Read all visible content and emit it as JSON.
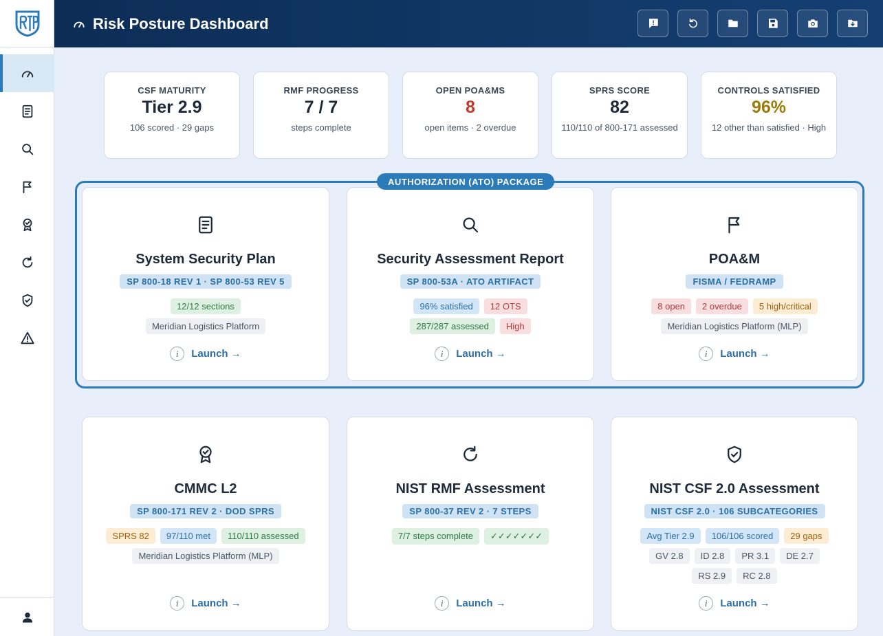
{
  "app": {
    "logo_text": "RTP"
  },
  "header": {
    "title": "Risk Posture Dashboard"
  },
  "stats": [
    {
      "label": "CSF MATURITY",
      "value": "Tier 2.9",
      "sub": "106 scored · 29 gaps"
    },
    {
      "label": "RMF PROGRESS",
      "value": "7 / 7",
      "sub": "steps complete"
    },
    {
      "label": "OPEN POA&MS",
      "value": "8",
      "sub": "open items · 2 overdue"
    },
    {
      "label": "SPRS SCORE",
      "value": "82",
      "sub": "110/110 of 800-171 assessed"
    },
    {
      "label": "CONTROLS SATISFIED",
      "value": "96%",
      "sub": "12 other than satisfied · High"
    }
  ],
  "ato": {
    "label": "AUTHORIZATION (ATO) PACKAGE"
  },
  "cards": {
    "ssp": {
      "title": "System Security Plan",
      "std": "SP 800-18 REV 1 · SP 800-53 REV 5",
      "pills1": [
        "12/12 sections"
      ],
      "pills2": [
        "Meridian Logistics Platform"
      ],
      "launch": "Launch →"
    },
    "sar": {
      "title": "Security Assessment Report",
      "std": "SP 800-53A · ATO ARTIFACT",
      "pills1": [
        "96% satisfied",
        "12 OTS"
      ],
      "pills2": [
        "287/287 assessed",
        "High"
      ],
      "launch": "Launch →"
    },
    "poam": {
      "title": "POA&M",
      "std": "FISMA / FEDRAMP",
      "pills1": [
        "8 open",
        "2 overdue",
        "5 high/critical"
      ],
      "pills2": [
        "Meridian Logistics Platform (MLP)"
      ],
      "launch": "Launch →"
    },
    "cmmc": {
      "title": "CMMC L2",
      "std": "SP 800-171 REV 2 · DOD SPRS",
      "pills1": [
        "SPRS 82",
        "97/110 met",
        "110/110 assessed"
      ],
      "pills2": [
        "Meridian Logistics Platform (MLP)"
      ],
      "launch": "Launch →"
    },
    "rmf": {
      "title": "NIST RMF Assessment",
      "std": "SP 800-37 REV 2 · 7 STEPS",
      "pills1": [
        "7/7 steps complete",
        "✓✓✓✓✓✓✓"
      ],
      "launch": "Launch →"
    },
    "csf": {
      "title": "NIST CSF 2.0 Assessment",
      "std": "NIST CSF 2.0 · 106 SUBCATEGORIES",
      "pills1": [
        "Avg Tier 2.9",
        "106/106 scored",
        "29 gaps"
      ],
      "pills2": [
        "GV 2.8",
        "ID 2.8",
        "PR 3.1",
        "DE 2.7"
      ],
      "pills3": [
        "RS 2.9",
        "RC 2.8"
      ],
      "launch": "Launch →"
    }
  },
  "colors": {
    "header": "#0c2d55",
    "accent": "#2b7bb9",
    "danger": "#c0392b",
    "gold": "#9a7d0a"
  },
  "icons": {
    "sidebar": [
      "gauge-icon",
      "document-icon",
      "search-icon",
      "flag-icon",
      "badge-icon",
      "refresh-icon",
      "shield-check-icon",
      "warning-icon"
    ],
    "header_actions": [
      "feedback-icon",
      "undo-icon",
      "folder-icon",
      "save-icon",
      "camera-icon",
      "folder-download-icon"
    ]
  }
}
